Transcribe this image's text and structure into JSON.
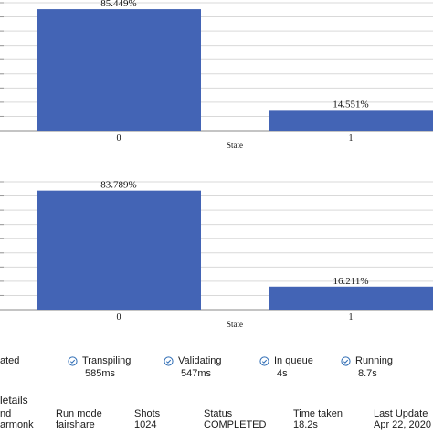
{
  "charts": [
    {
      "name": "chart-top",
      "xlabel": "State",
      "categories": [
        "0",
        "1"
      ],
      "values": [
        85.449,
        14.551
      ],
      "labels": [
        "85.449%",
        "14.551%"
      ],
      "ylim": [
        0,
        90
      ],
      "bar_color": "#4364b5"
    },
    {
      "name": "chart-bottom",
      "xlabel": "State",
      "categories": [
        "0",
        "1"
      ],
      "values": [
        83.789,
        16.211
      ],
      "labels": [
        "83.789%",
        "16.211%"
      ],
      "ylim": [
        0,
        90
      ],
      "bar_color": "#4364b5"
    }
  ],
  "chart_data": [
    {
      "type": "bar",
      "categories": [
        "0",
        "1"
      ],
      "values": [
        85.449,
        14.551
      ],
      "data_labels": [
        "85.449%",
        "14.551%"
      ],
      "xlabel": "State",
      "ylabel": "",
      "ylim": [
        0,
        90
      ],
      "grid": true
    },
    {
      "type": "bar",
      "categories": [
        "0",
        "1"
      ],
      "values": [
        83.789,
        16.211
      ],
      "data_labels": [
        "83.789%",
        "16.211%"
      ],
      "xlabel": "State",
      "ylabel": "",
      "ylim": [
        0,
        90
      ],
      "grid": true
    }
  ],
  "timeline": {
    "created_label": "ated",
    "steps": [
      {
        "label": "Transpiling",
        "value": "585ms",
        "icon": "check-circle-icon"
      },
      {
        "label": "Validating",
        "value": "547ms",
        "icon": "check-circle-icon"
      },
      {
        "label": "In queue",
        "value": "4s",
        "icon": "check-circle-icon"
      },
      {
        "label": "Running",
        "value": "8.7s",
        "icon": "check-circle-icon"
      }
    ]
  },
  "details": {
    "title": "letails",
    "columns": [
      {
        "header": "nd",
        "value": "armonk"
      },
      {
        "header": "Run mode",
        "value": "fairshare"
      },
      {
        "header": "Shots",
        "value": "1024"
      },
      {
        "header": "Status",
        "value": "COMPLETED"
      },
      {
        "header": "Time taken",
        "value": "18.2s"
      },
      {
        "header": "Last Update",
        "value": "Apr 22, 2020"
      }
    ]
  },
  "colors": {
    "bar": "#4364b5",
    "check_icon": "#2f6db5",
    "gridline": "#d9d9d9"
  }
}
